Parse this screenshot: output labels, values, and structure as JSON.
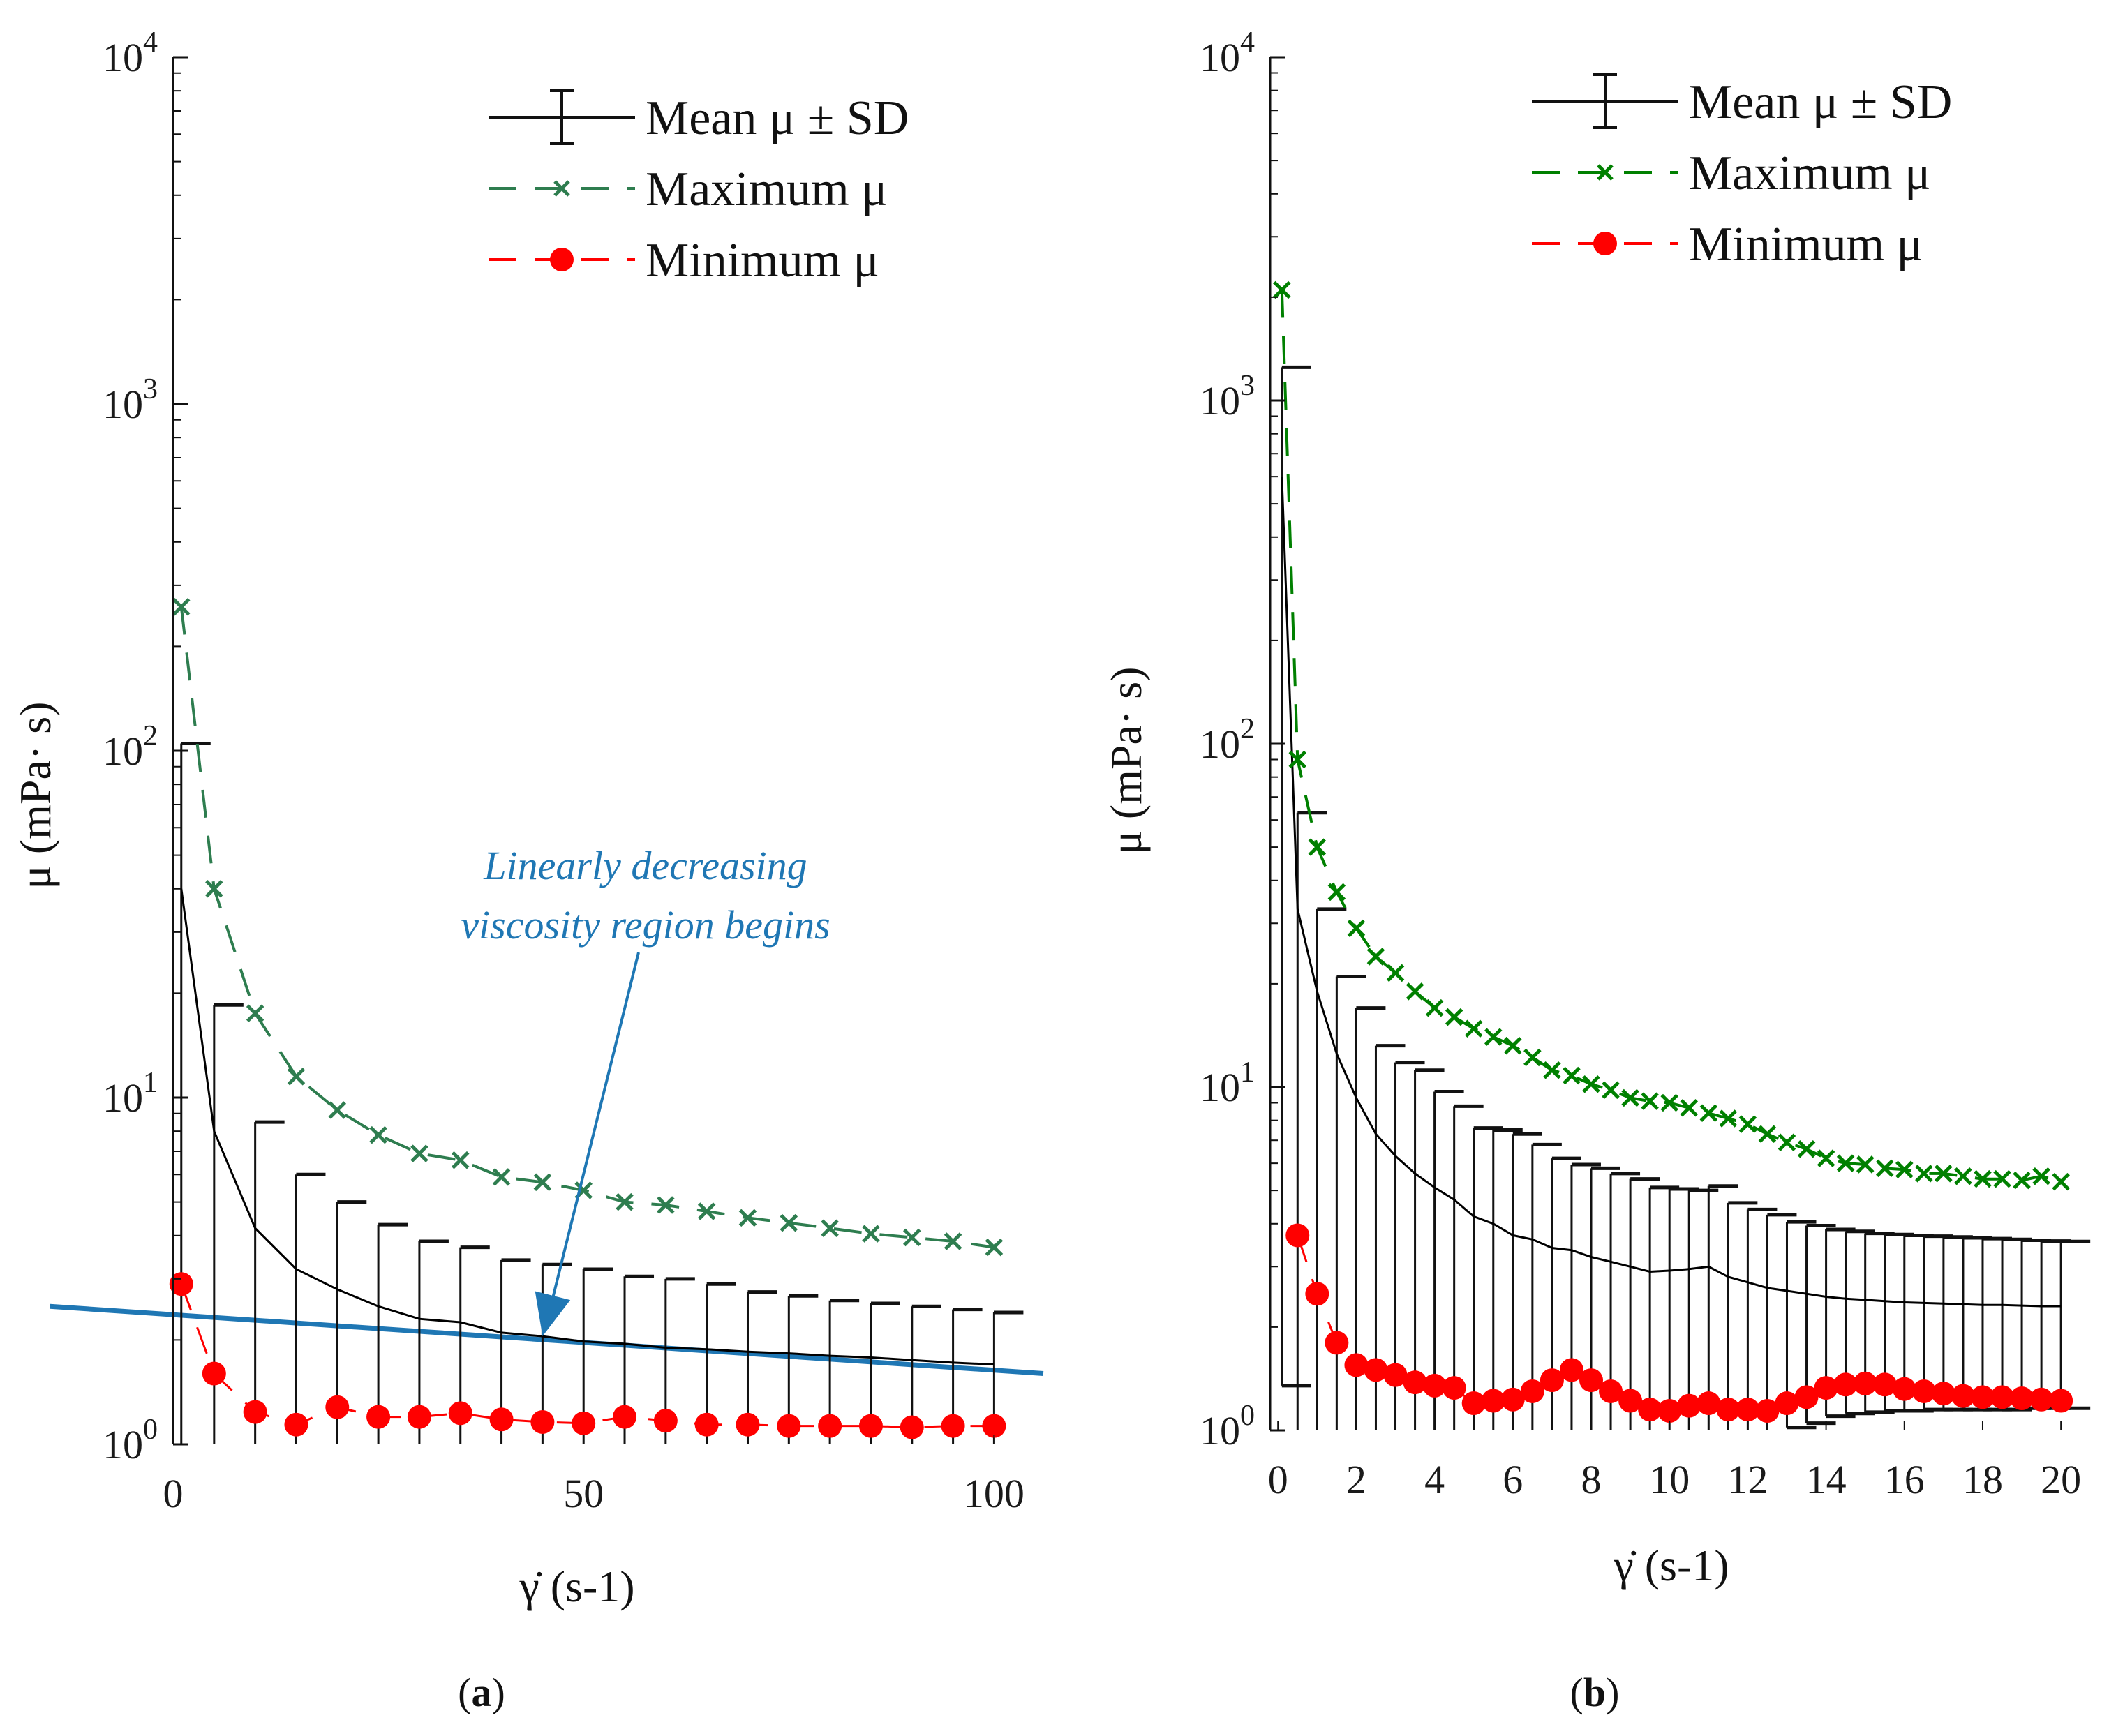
{
  "chart_data": [
    {
      "type": "line",
      "panel_label": "a",
      "ylabel": "μ (mPa· s)",
      "xlabel": "γ̇ (s-1)",
      "yscale": "log",
      "xlim": [
        0,
        106
      ],
      "ylim": [
        1,
        10000
      ],
      "x_ticks": [
        "0",
        "50",
        "100"
      ],
      "y_ticks": [
        "10",
        "10",
        "10",
        "10",
        "10"
      ],
      "y_tick_exponents": [
        "0",
        "1",
        "2",
        "3",
        "4"
      ],
      "legend": {
        "mean": "Mean μ ± SD",
        "max": "Maximum μ",
        "min": "Minimum μ"
      },
      "annotation": {
        "line1": "Linearly decreasing",
        "line2": "viscosity region begins",
        "arrow_target": [
          45,
          2.05
        ]
      },
      "trend_line": {
        "x": [
          -15,
          106
        ],
        "y": [
          2.5,
          1.6
        ],
        "color": "#1f77b4"
      },
      "series": [
        {
          "name": "Mean μ ± SD",
          "color": "#000000",
          "x": [
            1,
            5,
            10,
            15,
            20,
            25,
            30,
            35,
            40,
            45,
            50,
            55,
            60,
            65,
            70,
            75,
            80,
            85,
            90,
            95,
            100
          ],
          "values": [
            40,
            8,
            4.2,
            3.2,
            2.8,
            2.5,
            2.3,
            2.25,
            2.1,
            2.05,
            1.98,
            1.95,
            1.9,
            1.88,
            1.85,
            1.83,
            1.8,
            1.78,
            1.75,
            1.72,
            1.7
          ],
          "error_upper": [
            105,
            18.5,
            8.5,
            6,
            5,
            4.3,
            3.85,
            3.7,
            3.4,
            3.3,
            3.2,
            3.05,
            3.0,
            2.9,
            2.75,
            2.68,
            2.6,
            2.55,
            2.5,
            2.45,
            2.4
          ]
        },
        {
          "name": "Maximum μ",
          "color": "#2e7d4f",
          "x": [
            1,
            5,
            10,
            15,
            20,
            25,
            30,
            35,
            40,
            45,
            50,
            55,
            60,
            65,
            70,
            75,
            80,
            85,
            90,
            95,
            100
          ],
          "values": [
            260,
            40,
            17.5,
            11.5,
            9.2,
            7.8,
            6.9,
            6.6,
            5.9,
            5.7,
            5.4,
            5.0,
            4.9,
            4.7,
            4.5,
            4.35,
            4.2,
            4.05,
            3.95,
            3.85,
            3.7
          ]
        },
        {
          "name": "Minimum μ",
          "color": "#ff0000",
          "x": [
            1,
            5,
            10,
            15,
            20,
            25,
            30,
            35,
            40,
            45,
            50,
            55,
            60,
            65,
            70,
            75,
            80,
            85,
            90,
            95,
            100
          ],
          "values": [
            2.9,
            1.6,
            1.24,
            1.14,
            1.28,
            1.2,
            1.2,
            1.23,
            1.18,
            1.16,
            1.15,
            1.2,
            1.17,
            1.14,
            1.14,
            1.13,
            1.13,
            1.13,
            1.12,
            1.13,
            1.13
          ]
        }
      ]
    },
    {
      "type": "line",
      "panel_label": "b",
      "ylabel": "μ (mPa· s)",
      "xlabel": "γ̇ (s-1)",
      "yscale": "log",
      "xlim": [
        -0.2,
        20.3
      ],
      "ylim": [
        1,
        10000
      ],
      "x_ticks": [
        "0",
        "2",
        "4",
        "6",
        "8",
        "10",
        "12",
        "14",
        "16",
        "18",
        "20"
      ],
      "y_ticks": [
        "10",
        "10",
        "10",
        "10",
        "10"
      ],
      "y_tick_exponents": [
        "0",
        "1",
        "2",
        "3",
        "4"
      ],
      "legend": {
        "mean": "Mean μ ± SD",
        "max": "Maximum μ",
        "min": "Minimum μ"
      },
      "series": [
        {
          "name": "Mean μ ± SD",
          "color": "#000000",
          "x": [
            0.1,
            0.5,
            1,
            1.5,
            2,
            2.5,
            3,
            3.5,
            4,
            4.5,
            5,
            5.5,
            6,
            6.5,
            7,
            7.5,
            8,
            8.5,
            9,
            9.5,
            10,
            10.5,
            11,
            11.5,
            12,
            12.5,
            13,
            13.5,
            14,
            14.5,
            15,
            15.5,
            16,
            16.5,
            17,
            17.5,
            18,
            18.5,
            19,
            19.5,
            20
          ],
          "values": [
            600,
            33,
            19,
            12.5,
            9.3,
            7.3,
            6.3,
            5.6,
            5.1,
            4.7,
            4.2,
            4.0,
            3.7,
            3.6,
            3.4,
            3.35,
            3.2,
            3.1,
            3.0,
            2.9,
            2.92,
            2.95,
            3.0,
            2.8,
            2.7,
            2.6,
            2.55,
            2.5,
            2.45,
            2.42,
            2.4,
            2.38,
            2.36,
            2.35,
            2.34,
            2.33,
            2.32,
            2.32,
            2.31,
            2.3,
            2.3
          ],
          "error_upper": [
            1250,
            63,
            33,
            21,
            17,
            13.2,
            11.8,
            11.2,
            9.7,
            8.8,
            7.6,
            7.5,
            7.3,
            6.8,
            6.2,
            5.95,
            5.8,
            5.6,
            5.4,
            5.1,
            5.05,
            5.0,
            5.15,
            4.6,
            4.4,
            4.25,
            4.05,
            3.95,
            3.85,
            3.8,
            3.75,
            3.72,
            3.7,
            3.68,
            3.66,
            3.64,
            3.62,
            3.6,
            3.58,
            3.56,
            3.55
          ],
          "error_lower": [
            1.35,
            1.0,
            1.0,
            1.0,
            1.0,
            1.0,
            1.0,
            1.0,
            1.0,
            1.0,
            1.0,
            1.0,
            1.0,
            1.0,
            1.0,
            1.0,
            1.0,
            1.0,
            1.0,
            1.0,
            1.0,
            1.0,
            1.0,
            1.0,
            1.0,
            1.0,
            1.02,
            1.05,
            1.1,
            1.12,
            1.13,
            1.14,
            1.14,
            1.15,
            1.15,
            1.15,
            1.15,
            1.15,
            1.16,
            1.16,
            1.16
          ]
        },
        {
          "name": "Maximum μ",
          "color": "#008000",
          "x": [
            0.1,
            0.5,
            1,
            1.5,
            2,
            2.5,
            3,
            3.5,
            4,
            4.5,
            5,
            5.5,
            6,
            6.5,
            7,
            7.5,
            8,
            8.5,
            9,
            9.5,
            10,
            10.5,
            11,
            11.5,
            12,
            12.5,
            13,
            13.5,
            14,
            14.5,
            15,
            15.5,
            16,
            16.5,
            17,
            17.5,
            18,
            18.5,
            19,
            19.5,
            20
          ],
          "values": [
            2100,
            90,
            50,
            37,
            29,
            24,
            21.5,
            19,
            17,
            16,
            14.8,
            14,
            13.2,
            12.2,
            11.2,
            10.8,
            10.2,
            9.8,
            9.3,
            9.1,
            9.0,
            8.7,
            8.4,
            8.1,
            7.8,
            7.3,
            6.9,
            6.6,
            6.2,
            6.0,
            5.95,
            5.8,
            5.75,
            5.6,
            5.6,
            5.5,
            5.4,
            5.4,
            5.35,
            5.5,
            5.3
          ]
        },
        {
          "name": "Minimum μ",
          "color": "#ff0000",
          "x": [
            0.5,
            1,
            1.5,
            2,
            2.5,
            3,
            3.5,
            4,
            4.5,
            5,
            5.5,
            6,
            6.5,
            7,
            7.5,
            8,
            8.5,
            9,
            9.5,
            10,
            10.5,
            11,
            11.5,
            12,
            12.5,
            13,
            13.5,
            14,
            14.5,
            15,
            15.5,
            16,
            16.5,
            17,
            17.5,
            18,
            18.5,
            19,
            19.5,
            20
          ],
          "values": [
            3.7,
            2.5,
            1.8,
            1.55,
            1.5,
            1.45,
            1.38,
            1.35,
            1.33,
            1.2,
            1.22,
            1.23,
            1.3,
            1.4,
            1.5,
            1.4,
            1.3,
            1.22,
            1.15,
            1.14,
            1.18,
            1.2,
            1.15,
            1.15,
            1.14,
            1.2,
            1.25,
            1.33,
            1.36,
            1.37,
            1.36,
            1.32,
            1.3,
            1.28,
            1.26,
            1.25,
            1.25,
            1.24,
            1.23,
            1.22
          ]
        }
      ]
    }
  ]
}
